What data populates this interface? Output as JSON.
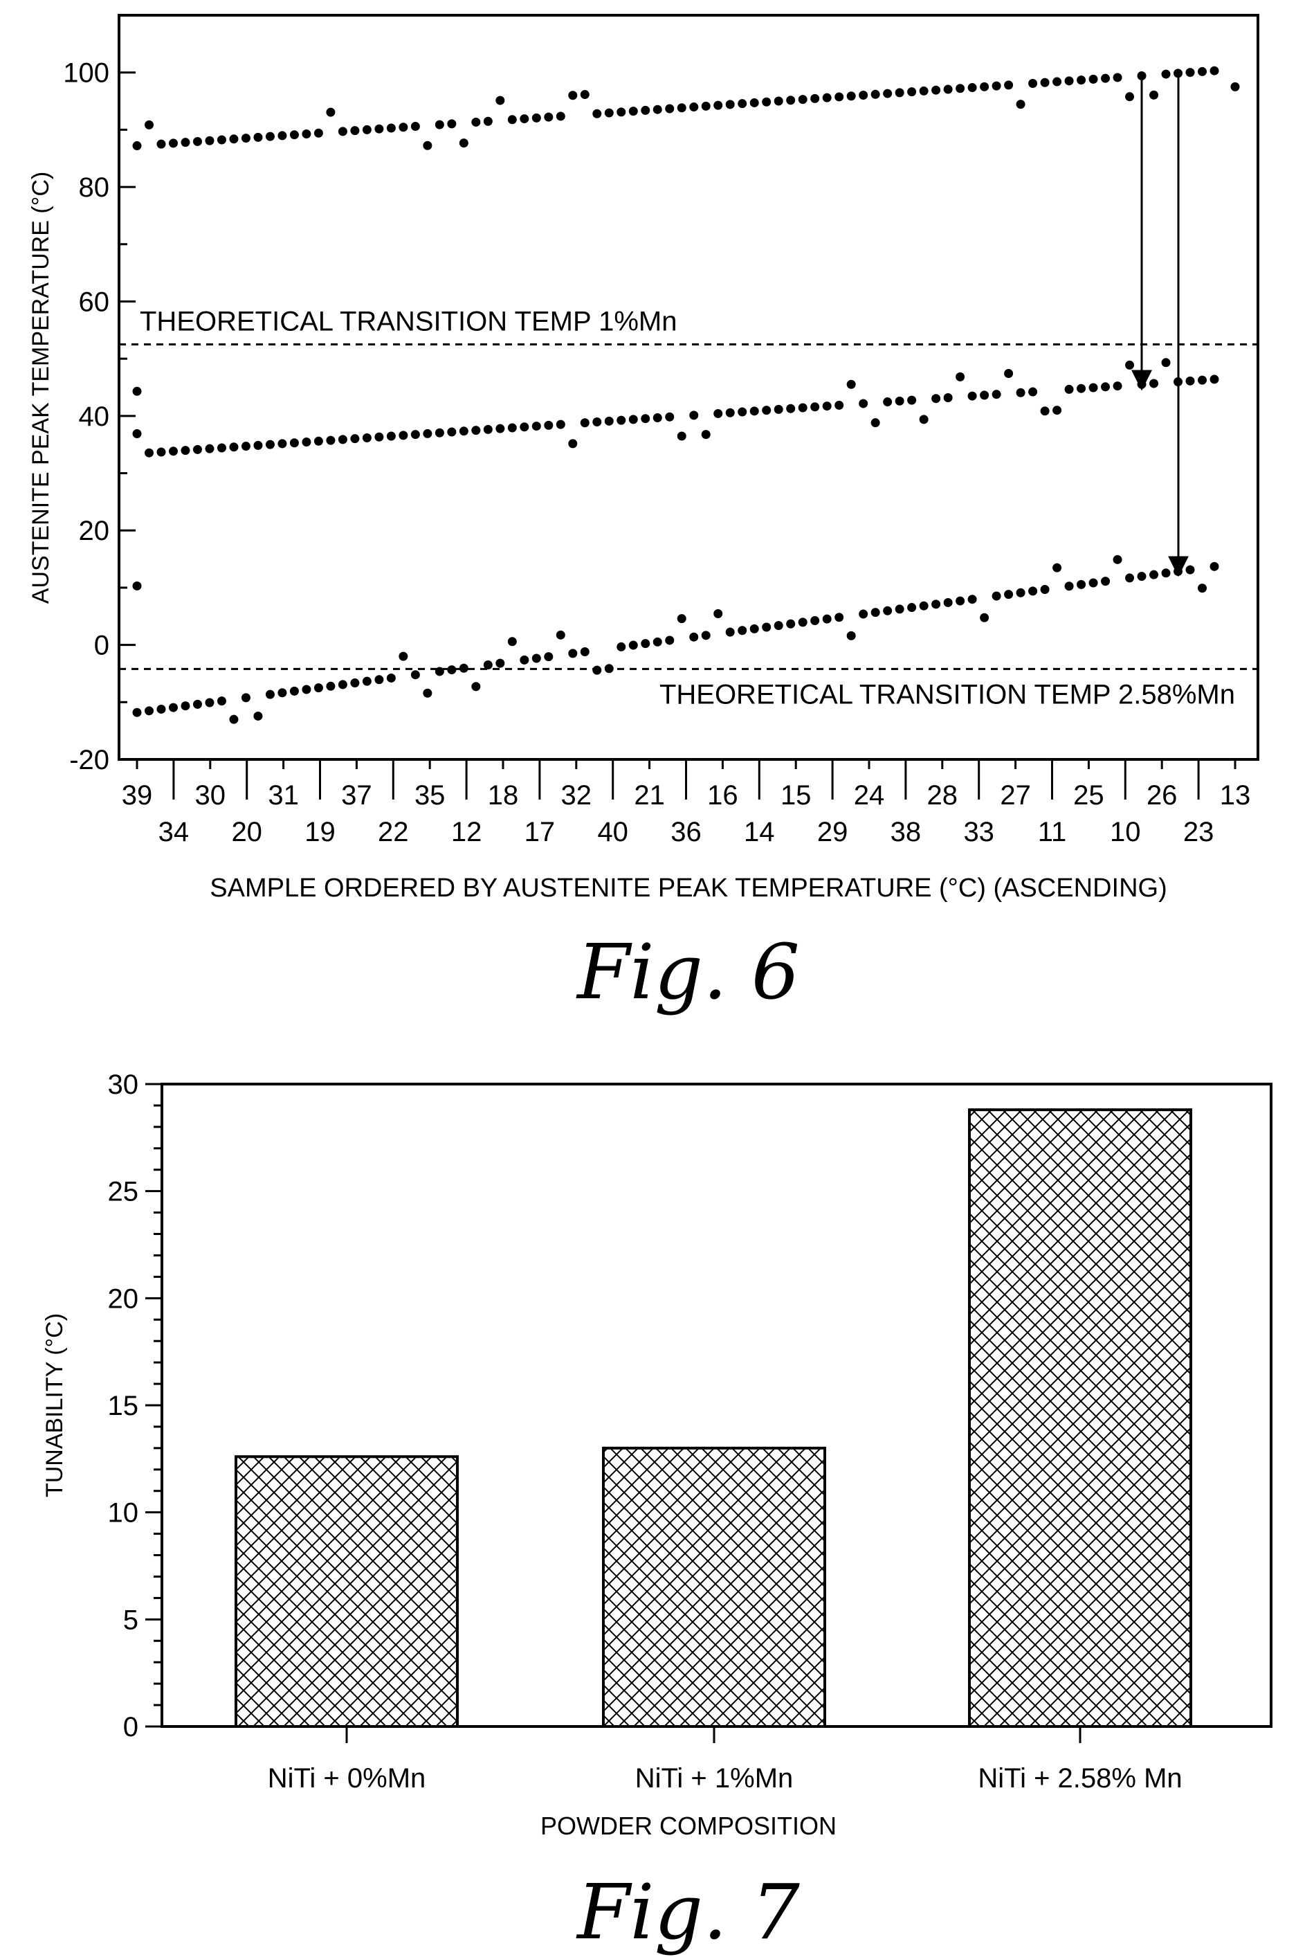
{
  "figures": {
    "fig6_caption": "Fig. 6",
    "fig7_caption": "Fig. 7"
  },
  "chart_data": [
    {
      "type": "scatter",
      "ylabel": "AUSTENITE PEAK TEMPERATURE (°C)",
      "xlabel": "SAMPLE ORDERED BY AUSTENITE PEAK TEMPERATURE (°C) (ASCENDING)",
      "ylim": [
        -20,
        110
      ],
      "yticks": [
        -20,
        0,
        20,
        40,
        60,
        80,
        100
      ],
      "grid": false,
      "x_ticklabels_row1": [
        "39",
        "30",
        "31",
        "37",
        "35",
        "18",
        "32",
        "21",
        "16",
        "15",
        "24",
        "28",
        "27",
        "25",
        "26",
        "13"
      ],
      "x_ticklabels_row2": [
        "34",
        "20",
        "19",
        "22",
        "12",
        "17",
        "40",
        "36",
        "14",
        "29",
        "38",
        "33",
        "11",
        "10",
        "23"
      ],
      "reference_lines": [
        {
          "label": "THEORETICAL TRANSITION TEMP 1%Mn",
          "y": 52.5
        },
        {
          "label": "THEORETICAL TRANSITION TEMP 2.58%Mn",
          "y": -4.2
        }
      ],
      "series": [
        {
          "y_start": 87.2,
          "y_end": 100.3
        },
        {
          "y_start": 33.4,
          "y_end": 46.4
        },
        {
          "y_start": -11.8,
          "y_end": 13.7
        }
      ],
      "arrows": [
        {
          "from_y": 99.5,
          "to_y": 45.0
        },
        {
          "from_y": 100.0,
          "to_y": 12.5
        }
      ]
    },
    {
      "type": "bar",
      "ylabel": "TUNABILITY (°C)",
      "xlabel": "POWDER COMPOSITION",
      "categories": [
        "NiTi + 0%Mn",
        "NiTi + 1%Mn",
        "NiTi + 2.58% Mn"
      ],
      "values": [
        12.6,
        13.0,
        28.8
      ],
      "ylim": [
        0,
        30
      ],
      "yticks": [
        0,
        5,
        10,
        15,
        20,
        25,
        30
      ],
      "grid": false,
      "fill_pattern": "cross-hatch"
    }
  ]
}
